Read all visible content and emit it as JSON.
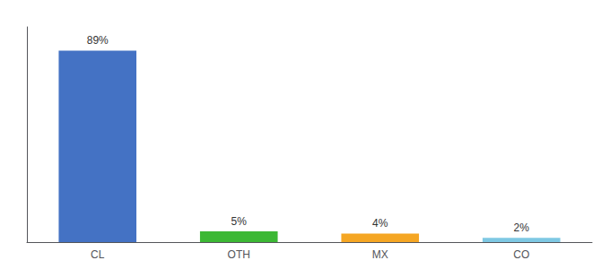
{
  "chart_data": {
    "type": "bar",
    "categories": [
      "CL",
      "OTH",
      "MX",
      "CO"
    ],
    "values": [
      89,
      5,
      4,
      2
    ],
    "value_labels": [
      "89%",
      "5%",
      "4%",
      "2%"
    ],
    "colors": [
      "#4472c4",
      "#3cb834",
      "#f5a623",
      "#7ec8e3"
    ],
    "ylim": [
      0,
      100
    ],
    "grid": false,
    "data_labels": true,
    "tick_labels": "x"
  }
}
